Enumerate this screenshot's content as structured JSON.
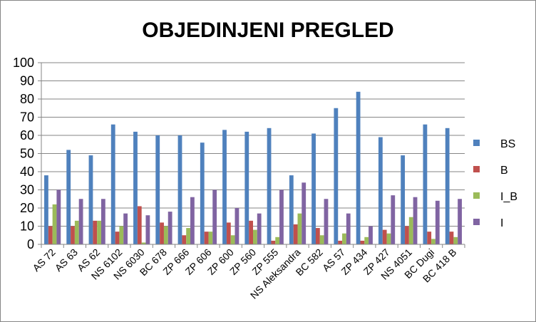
{
  "chart_data": {
    "type": "bar",
    "title": "OBJEDINJENI PREGLED",
    "xlabel": "",
    "ylabel": "",
    "ylim": [
      0,
      100
    ],
    "yticks": [
      0,
      10,
      20,
      30,
      40,
      50,
      60,
      70,
      80,
      90,
      100
    ],
    "grid": true,
    "legend_position": "right",
    "categories": [
      "AS 72",
      "AS 63",
      "AS 62",
      "NS 6102",
      "NS 6030",
      "BC 678",
      "ZP 666",
      "ZP 606",
      "ZP 600",
      "ZP 560",
      "ZP 555",
      "NS Aleksandra",
      "BC 582",
      "AS 57",
      "ZP 434",
      "ZP 427",
      "NS 4051",
      "BC Dugi",
      "BC 418 B"
    ],
    "series": [
      {
        "name": "BS",
        "color": "#4F81BD",
        "values": [
          38,
          52,
          49,
          66,
          62,
          60,
          60,
          56,
          63,
          62,
          64,
          38,
          61,
          75,
          84,
          59,
          49,
          66,
          64
        ]
      },
      {
        "name": "B",
        "color": "#C0504D",
        "values": [
          10,
          10,
          13,
          7,
          21,
          12,
          5,
          7,
          12,
          13,
          2,
          11,
          9,
          2,
          2,
          8,
          10,
          7,
          7
        ]
      },
      {
        "name": "I_B",
        "color": "#9BBB59",
        "values": [
          22,
          13,
          13,
          10,
          1,
          10,
          9,
          7,
          5,
          8,
          4,
          17,
          5,
          6,
          4,
          6,
          15,
          3,
          4
        ]
      },
      {
        "name": "I",
        "color": "#8064A2",
        "values": [
          30,
          25,
          25,
          17,
          16,
          18,
          26,
          30,
          20,
          17,
          30,
          34,
          25,
          17,
          10,
          27,
          26,
          24,
          25
        ]
      }
    ]
  }
}
